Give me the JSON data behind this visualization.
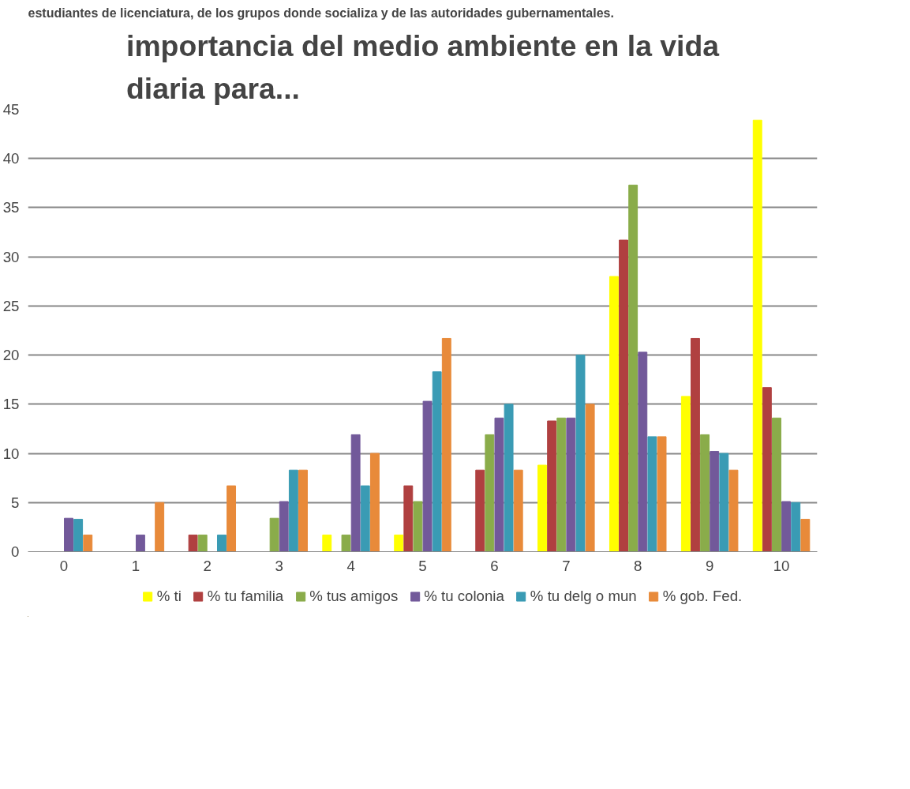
{
  "chart_data": {
    "type": "bar",
    "title": "importancia del medio ambiente en la vida diaria para...",
    "annotations": [
      "estudiantes de licenciatura, de los grupos donde socializa y de las autoridades gubernamentales."
    ],
    "categories": [
      "0",
      "1",
      "2",
      "3",
      "4",
      "5",
      "6",
      "7",
      "8",
      "9",
      "10"
    ],
    "series": [
      {
        "name": "% ti",
        "color": "#ffff00",
        "values": [
          0,
          0,
          0,
          0,
          1.7,
          1.7,
          0,
          8.8,
          28,
          15.8,
          43.9
        ]
      },
      {
        "name": "% tu familia",
        "color": "#b04040",
        "values": [
          0,
          0,
          1.7,
          0,
          0,
          6.7,
          8.3,
          13.3,
          31.7,
          21.7,
          16.7
        ]
      },
      {
        "name": "% tus amigos",
        "color": "#8aac4a",
        "values": [
          0,
          0,
          1.7,
          3.4,
          1.7,
          5.1,
          11.9,
          13.6,
          37.3,
          11.9,
          13.6
        ]
      },
      {
        "name": "% tu colonia",
        "color": "#72599a",
        "values": [
          3.4,
          1.7,
          0,
          5.1,
          11.9,
          15.3,
          13.6,
          13.6,
          20.3,
          10.2,
          5.1
        ]
      },
      {
        "name": "% tu delg o mun",
        "color": "#3a9bb4",
        "values": [
          3.3,
          0,
          1.7,
          8.3,
          6.7,
          18.3,
          15,
          20,
          11.7,
          10,
          5
        ]
      },
      {
        "name": "% gob. Fed.",
        "color": "#e88a3a",
        "values": [
          1.7,
          5,
          6.7,
          8.3,
          10,
          21.7,
          8.3,
          15,
          11.7,
          8.3,
          3.3
        ]
      }
    ],
    "ylim": [
      0,
      45
    ],
    "yticks": [
      0,
      5,
      10,
      15,
      20,
      25,
      30,
      35,
      40,
      45
    ],
    "grid": "y",
    "legend": "bottom"
  }
}
